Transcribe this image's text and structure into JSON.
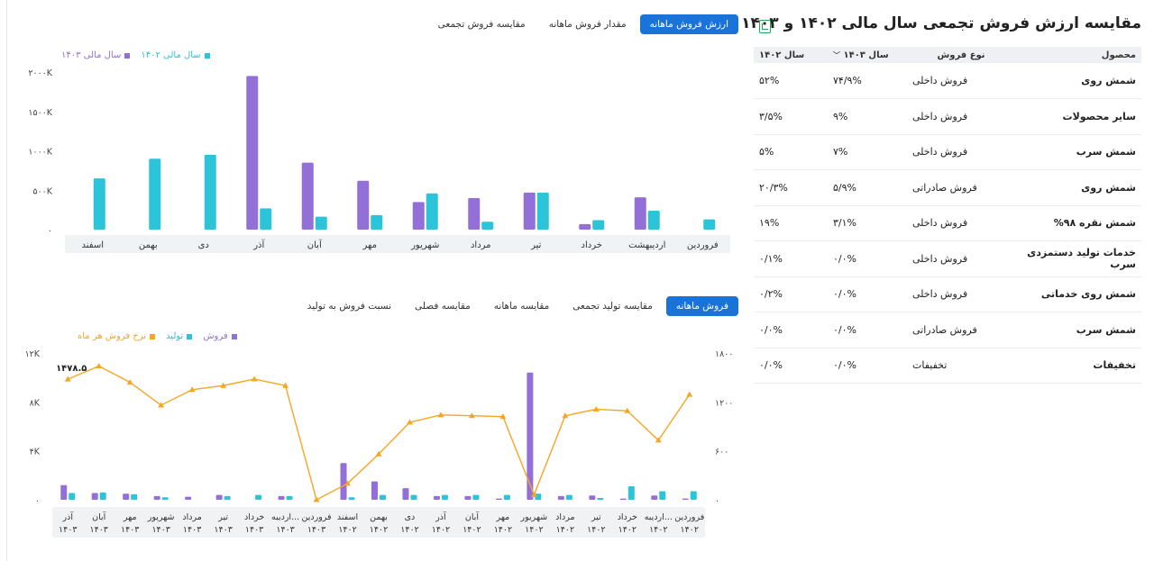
{
  "right_panel": {
    "title": "مقایسه ارزش فروش تجمعی سال مالی ۱۴۰۲ و ۱۴۰۳",
    "columns": [
      "محصول",
      "نوع فروش",
      "سال ۱۴۰۳",
      "سال ۱۴۰۲"
    ],
    "rows": [
      {
        "product": "شمش روی",
        "type": "فروش داخلی",
        "y1403": "۷۴/۹%",
        "y1402": "۵۲%"
      },
      {
        "product": "سایر محصولات",
        "type": "فروش داخلی",
        "y1403": "۹%",
        "y1402": "۳/۵%"
      },
      {
        "product": "شمش سرب",
        "type": "فروش داخلی",
        "y1403": "۷%",
        "y1402": "۵%"
      },
      {
        "product": "شمش روی",
        "type": "فروش صادراتی",
        "y1403": "۵/۹%",
        "y1402": "۲۰/۳%"
      },
      {
        "product": "شمش نقره ۹۸%",
        "type": "فروش داخلی",
        "y1403": "۳/۱%",
        "y1402": "۱۹%"
      },
      {
        "product": "خدمات تولید دستمزدی سرب",
        "type": "فروش داخلی",
        "y1403": "۰/۰%",
        "y1402": "۰/۱%"
      },
      {
        "product": "شمش روی خدماتی",
        "type": "فروش داخلی",
        "y1403": "۰/۰%",
        "y1402": "۰/۲%"
      },
      {
        "product": "شمش سرب",
        "type": "فروش صادراتی",
        "y1403": "۰/۰%",
        "y1402": "۰/۰%"
      },
      {
        "product": "تخفیفات",
        "type": "تخفیفات",
        "y1403": "۰/۰%",
        "y1402": "۰/۰%"
      }
    ]
  },
  "top_tabs": [
    "ارزش فروش ماهانه",
    "مقدار فروش ماهانه",
    "مقایسه فروش تجمعی"
  ],
  "bottom_tabs": [
    "فروش ماهانه",
    "مقایسه تولید تجمعی",
    "مقایسه ماهانه",
    "مقایسه فصلی",
    "نسبت فروش به تولید"
  ],
  "colors": {
    "teal": "#2cc4d8",
    "purple": "#9370d8",
    "orange": "#f5a623",
    "accent": "#1a73d9"
  },
  "chart_data": [
    {
      "type": "bar",
      "title": "",
      "categories": [
        "فروردین",
        "اردیبهشت",
        "خرداد",
        "تیر",
        "مرداد",
        "شهریور",
        "مهر",
        "آبان",
        "آذر",
        "دی",
        "بهمن",
        "اسفند"
      ],
      "series": [
        {
          "name": "سال مالی ۱۴۰۲",
          "color": "#2cc4d8",
          "values": [
            130,
            240,
            120,
            470,
            100,
            460,
            185,
            165,
            270,
            950,
            900,
            650
          ]
        },
        {
          "name": "سال مالی ۱۴۰۳",
          "color": "#9370d8",
          "values": [
            0,
            410,
            70,
            470,
            400,
            350,
            620,
            850,
            1950,
            0,
            0,
            0
          ]
        }
      ],
      "y_ticks": [
        "۰",
        "۵۰۰K",
        "۱۰۰۰K",
        "۱۵۰۰K",
        "۲۰۰۰K"
      ],
      "ylim": [
        0,
        2000
      ],
      "legend_position": "top-left"
    },
    {
      "type": "bar+line",
      "title": "",
      "categories": [
        [
          "فروردین",
          "۱۴۰۲"
        ],
        [
          "اردیبه...",
          "۱۴۰۲"
        ],
        [
          "خرداد",
          "۱۴۰۲"
        ],
        [
          "تیر",
          "۱۴۰۲"
        ],
        [
          "مرداد",
          "۱۴۰۲"
        ],
        [
          "شهریور",
          "۱۴۰۲"
        ],
        [
          "مهر",
          "۱۴۰۲"
        ],
        [
          "آبان",
          "۱۴۰۲"
        ],
        [
          "آذر",
          "۱۴۰۲"
        ],
        [
          "دی",
          "۱۴۰۲"
        ],
        [
          "بهمن",
          "۱۴۰۲"
        ],
        [
          "اسفند",
          "۱۴۰۲"
        ],
        [
          "فروردین",
          "۱۴۰۳"
        ],
        [
          "اردیبه...",
          "۱۴۰۳"
        ],
        [
          "خرداد",
          "۱۴۰۳"
        ],
        [
          "تیر",
          "۱۴۰۳"
        ],
        [
          "مرداد",
          "۱۴۰۳"
        ],
        [
          "شهریور",
          "۱۴۰۳"
        ],
        [
          "مهر",
          "۱۴۰۳"
        ],
        [
          "آبان",
          "۱۴۰۳"
        ],
        [
          "آذر",
          "۱۴۰۳"
        ]
      ],
      "series": [
        {
          "name": "تولید",
          "kind": "bar",
          "axis": "left",
          "color": "#2cc4d8",
          "values": [
            700,
            700,
            1100,
            150,
            400,
            500,
            400,
            400,
            400,
            400,
            400,
            200,
            0,
            300,
            400,
            300,
            0,
            200,
            450,
            600,
            550
          ]
        },
        {
          "name": "فروش",
          "kind": "bar",
          "axis": "left",
          "color": "#9370d8",
          "values": [
            100,
            350,
            100,
            350,
            300,
            10400,
            100,
            300,
            300,
            950,
            1500,
            3000,
            0,
            300,
            0,
            400,
            250,
            300,
            500,
            550,
            1200
          ]
        },
        {
          "name": "نرخ فروش هر ماه",
          "kind": "line",
          "axis": "right",
          "color": "#f5a623",
          "values": [
            1290,
            730,
            1090,
            1110,
            1030,
            60,
            1020,
            1030,
            1040,
            950,
            560,
            200,
            0,
            1400,
            1480,
            1400,
            1350,
            1160,
            1440,
            1640,
            1478.5
          ]
        }
      ],
      "left_ticks": [
        "۰",
        "۴K",
        "۸K",
        "۱۲K"
      ],
      "right_ticks": [
        "۰",
        "۶۰۰",
        "۱۲۰۰",
        "۱۸۰۰"
      ],
      "left_ylim": [
        0,
        12000
      ],
      "right_ylim": [
        0,
        1800
      ],
      "annotation": "۱۴۷۸.۵",
      "legend_position": "top-left"
    }
  ]
}
